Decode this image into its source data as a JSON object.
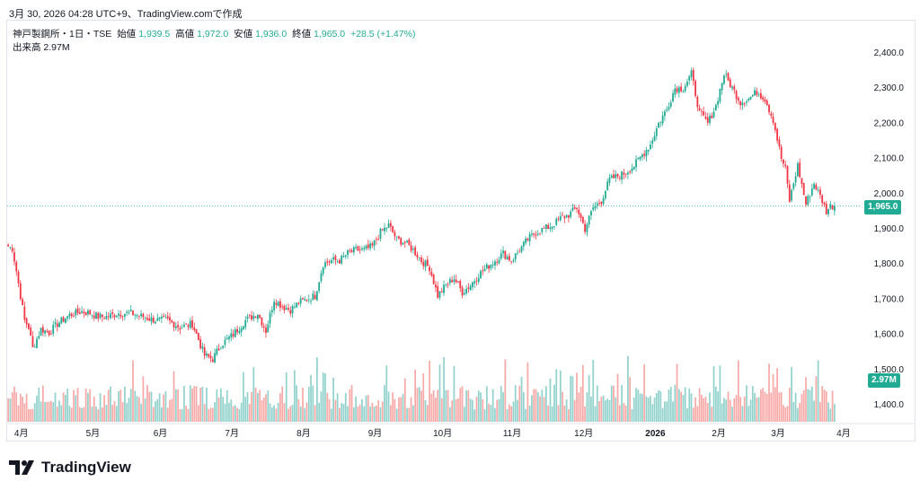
{
  "header": {
    "text": "3月 30, 2026 04:28 UTC+9、TradingView.comで作成"
  },
  "legend": {
    "symbol": "神戸製鋼所・1日・TSE",
    "open_label": "始値",
    "open": "1,939.5",
    "high_label": "高値",
    "high": "1,972.0",
    "low_label": "安値",
    "low": "1,936.0",
    "close_label": "終値",
    "close": "1,965.0",
    "change": "+28.5 (+1.47%)",
    "volume_label": "出来高",
    "volume": "2.97M"
  },
  "price_badge": "1,965.0",
  "volume_badge": "2.97M",
  "logo": {
    "text": "TradingView"
  },
  "colors": {
    "up": "#22ab94",
    "down": "#f23645",
    "up_vol": "#92d2cc",
    "down_vol": "#f7a9a7",
    "text": "#131722"
  },
  "chart_data": {
    "type": "candlestick",
    "title": "神戸製鋼所・1日・TSE",
    "ylim": [
      1350,
      2470
    ],
    "y_ticks": [
      "2,400.0",
      "2,300.0",
      "2,200.0",
      "2,100.0",
      "2,000.0",
      "1,900.0",
      "1,800.0",
      "1,700.0",
      "1,600.0",
      "1,500.0",
      "1,400.0"
    ],
    "y_tick_values": [
      2400,
      2300,
      2200,
      2100,
      2000,
      1900,
      1800,
      1700,
      1600,
      1500,
      1400
    ],
    "x_labels": [
      "4月",
      "5月",
      "6月",
      "7月",
      "8月",
      "9月",
      "10月",
      "11月",
      "12月",
      "2026",
      "2月",
      "3月",
      "4月"
    ],
    "x_label_index": [
      2,
      37,
      70,
      105,
      140,
      175,
      208,
      242,
      277,
      312,
      343,
      372,
      404
    ],
    "last_close": 1965.0,
    "close_anchors": [
      [
        0,
        1850
      ],
      [
        2,
        1845
      ],
      [
        4,
        1780
      ],
      [
        8,
        1640
      ],
      [
        10,
        1620
      ],
      [
        12,
        1560
      ],
      [
        16,
        1615
      ],
      [
        20,
        1605
      ],
      [
        24,
        1630
      ],
      [
        30,
        1655
      ],
      [
        36,
        1665
      ],
      [
        40,
        1660
      ],
      [
        44,
        1650
      ],
      [
        48,
        1650
      ],
      [
        54,
        1660
      ],
      [
        60,
        1660
      ],
      [
        66,
        1650
      ],
      [
        72,
        1640
      ],
      [
        78,
        1640
      ],
      [
        84,
        1620
      ],
      [
        90,
        1630
      ],
      [
        96,
        1540
      ],
      [
        100,
        1530
      ],
      [
        104,
        1570
      ],
      [
        110,
        1600
      ],
      [
        116,
        1640
      ],
      [
        122,
        1660
      ],
      [
        126,
        1610
      ],
      [
        130,
        1700
      ],
      [
        134,
        1680
      ],
      [
        138,
        1670
      ],
      [
        142,
        1690
      ],
      [
        146,
        1700
      ],
      [
        150,
        1710
      ],
      [
        154,
        1800
      ],
      [
        158,
        1810
      ],
      [
        162,
        1810
      ],
      [
        166,
        1830
      ],
      [
        170,
        1840
      ],
      [
        174,
        1840
      ],
      [
        178,
        1850
      ],
      [
        182,
        1890
      ],
      [
        186,
        1910
      ],
      [
        190,
        1870
      ],
      [
        194,
        1860
      ],
      [
        198,
        1840
      ],
      [
        202,
        1810
      ],
      [
        206,
        1790
      ],
      [
        210,
        1710
      ],
      [
        214,
        1740
      ],
      [
        218,
        1760
      ],
      [
        222,
        1720
      ],
      [
        226,
        1740
      ],
      [
        230,
        1770
      ],
      [
        234,
        1790
      ],
      [
        238,
        1810
      ],
      [
        242,
        1830
      ],
      [
        246,
        1810
      ],
      [
        250,
        1840
      ],
      [
        254,
        1870
      ],
      [
        258,
        1890
      ],
      [
        262,
        1900
      ],
      [
        266,
        1910
      ],
      [
        270,
        1930
      ],
      [
        274,
        1940
      ],
      [
        278,
        1960
      ],
      [
        282,
        1900
      ],
      [
        286,
        1960
      ],
      [
        290,
        1980
      ],
      [
        294,
        2040
      ],
      [
        298,
        2050
      ],
      [
        302,
        2060
      ],
      [
        306,
        2080
      ],
      [
        310,
        2110
      ],
      [
        314,
        2140
      ],
      [
        318,
        2200
      ],
      [
        322,
        2240
      ],
      [
        326,
        2300
      ],
      [
        330,
        2300
      ],
      [
        334,
        2340
      ],
      [
        338,
        2230
      ],
      [
        342,
        2200
      ],
      [
        346,
        2250
      ],
      [
        350,
        2340
      ],
      [
        354,
        2300
      ],
      [
        358,
        2260
      ],
      [
        362,
        2270
      ],
      [
        366,
        2290
      ],
      [
        370,
        2270
      ],
      [
        374,
        2210
      ],
      [
        378,
        2100
      ],
      [
        380,
        2070
      ],
      [
        382,
        1980
      ],
      [
        386,
        2080
      ],
      [
        390,
        1970
      ],
      [
        394,
        2030
      ],
      [
        398,
        1980
      ],
      [
        400,
        1950
      ],
      [
        402,
        1965
      ]
    ]
  }
}
